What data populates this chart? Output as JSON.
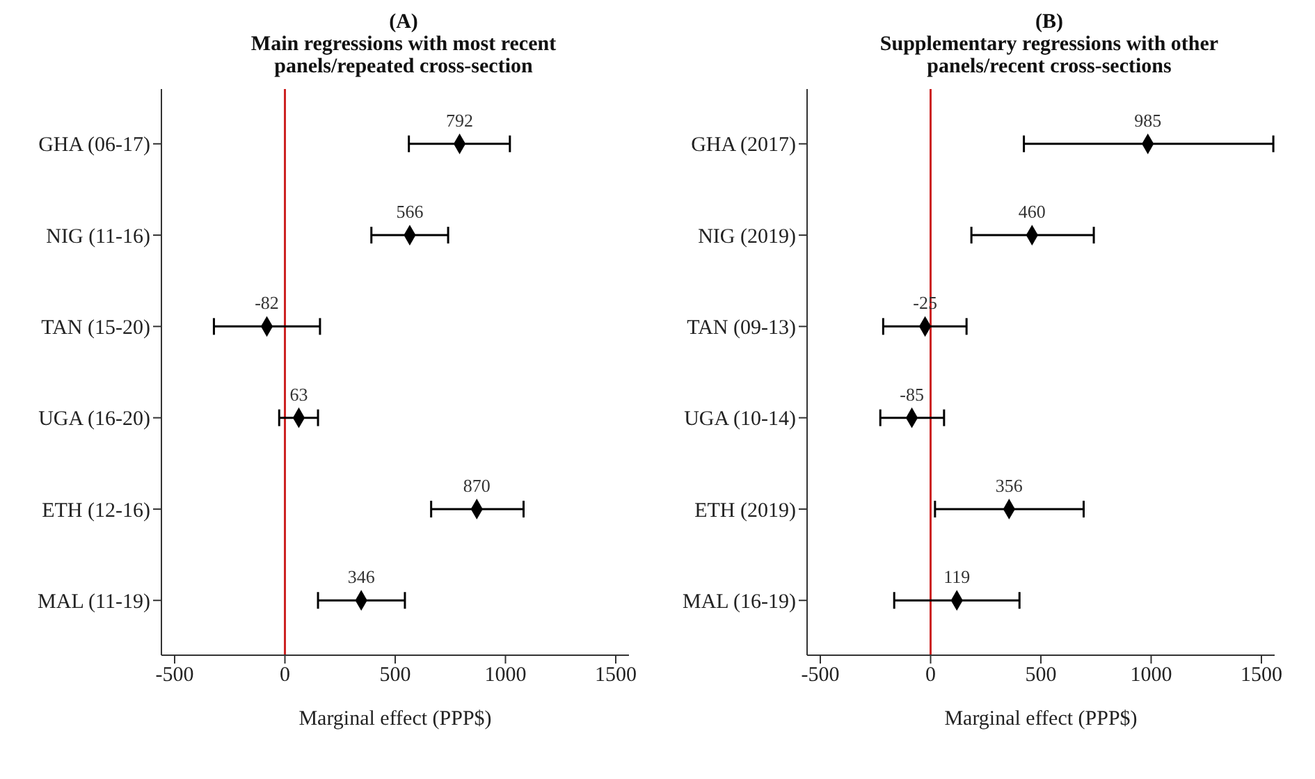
{
  "chart_data": [
    {
      "type": "scatter",
      "orientation": "horizontal",
      "title": "(A)",
      "subtitle": "Main regressions with most recent panels/repeated cross-section",
      "xlabel": "Marginal effect (PPP$)",
      "categories": [
        "GHA (06-17)",
        "NIG (11-16)",
        "TAN (15-20)",
        "UGA (16-20)",
        "ETH (12-16)",
        "MAL (11-19)"
      ],
      "values": [
        792,
        566,
        -82,
        63,
        870,
        346
      ],
      "errors": [
        [
          562,
          1020
        ],
        [
          392,
          740
        ],
        [
          -322,
          159
        ],
        [
          -26,
          150
        ],
        [
          663,
          1082
        ],
        [
          150,
          544
        ]
      ],
      "color": "#000000",
      "marker": "diamond",
      "data_labels": true,
      "xlim": [
        -560,
        1560
      ],
      "xticks": [
        -500,
        0,
        500,
        1000,
        1500
      ],
      "ref_lines": [
        {
          "axis": "x",
          "value": 0,
          "color": "#cc2222"
        }
      ]
    },
    {
      "type": "scatter",
      "orientation": "horizontal",
      "title": "(B)",
      "subtitle": "Supplementary regressions with other panels/recent cross-sections",
      "xlabel": "Marginal effect (PPP$)",
      "categories": [
        "GHA (2017)",
        "NIG (2019)",
        "TAN (09-13)",
        "UGA (10-14)",
        "ETH (2019)",
        "MAL (16-19)"
      ],
      "values": [
        985,
        460,
        -25,
        -85,
        356,
        119
      ],
      "errors": [
        [
          423,
          1554
        ],
        [
          185,
          740
        ],
        [
          -215,
          163
        ],
        [
          -228,
          61
        ],
        [
          20,
          694
        ],
        [
          -165,
          403
        ]
      ],
      "color": "#000000",
      "marker": "diamond",
      "data_labels": true,
      "xlim": [
        -560,
        1560
      ],
      "xticks": [
        -500,
        0,
        500,
        1000,
        1500
      ],
      "ref_lines": [
        {
          "axis": "x",
          "value": 0,
          "color": "#cc2222"
        }
      ]
    }
  ]
}
